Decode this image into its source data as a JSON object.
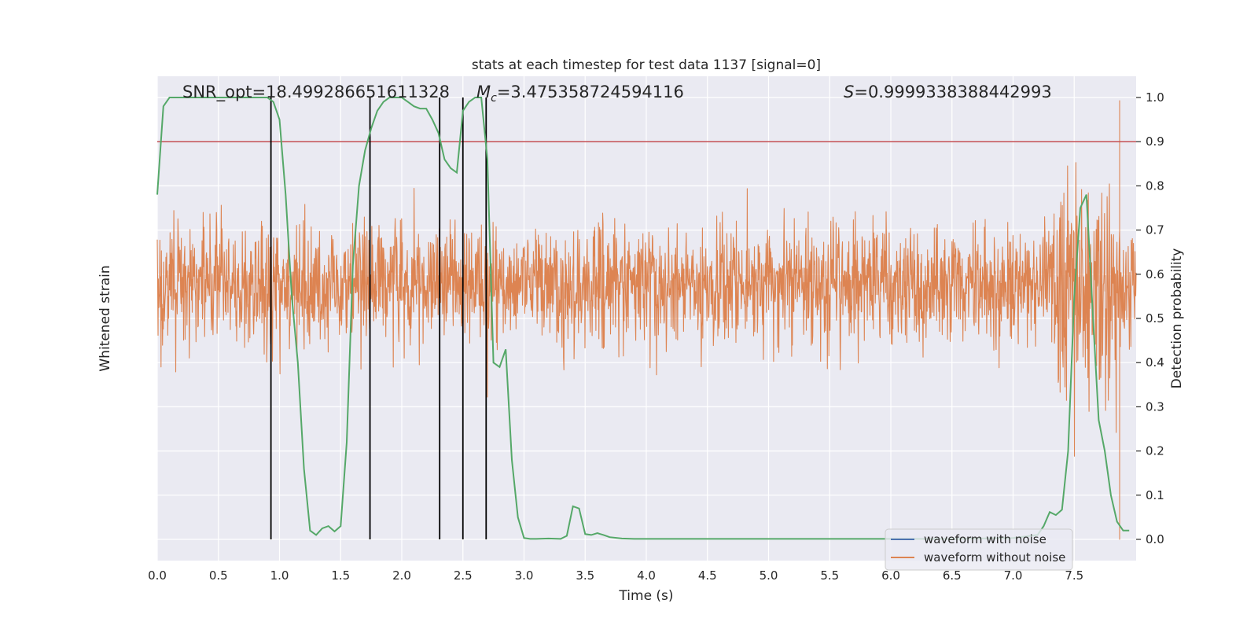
{
  "chart_data": {
    "type": "line",
    "title": "stats at each timestep for test data 1137 [signal=0]",
    "xlabel": "Time (s)",
    "ylabel_left": "Whitened strain",
    "ylabel_right": "Detection probability",
    "xlim": [
      0.0,
      8.0
    ],
    "ylim_right": [
      -0.05,
      1.05
    ],
    "x_ticks": [
      "0.0",
      "0.5",
      "1.0",
      "1.5",
      "2.0",
      "2.5",
      "3.0",
      "3.5",
      "4.0",
      "4.5",
      "5.0",
      "5.5",
      "6.0",
      "6.5",
      "7.0",
      "7.5"
    ],
    "y_right_ticks": [
      "0.0",
      "0.1",
      "0.2",
      "0.3",
      "0.4",
      "0.5",
      "0.6",
      "0.7",
      "0.8",
      "0.9",
      "1.0"
    ],
    "grid": true,
    "annotations": {
      "snr": "SNR_opt=18.499286651611328",
      "chirp_mass_symbol": "M",
      "chirp_mass_sub": "c",
      "chirp_mass_value": "=3.475358724594116",
      "score_symbol": "S",
      "score_value": "=0.9999338388442993"
    },
    "threshold": 0.9,
    "vertical_lines_x": [
      0.93,
      1.74,
      2.31,
      2.5,
      2.69
    ],
    "legend": {
      "position": "lower right",
      "entries": [
        {
          "label": "waveform with noise",
          "color": "#4c72b0"
        },
        {
          "label": "waveform without noise",
          "color": "#dd8452"
        }
      ]
    },
    "series": [
      {
        "name": "Detection probability",
        "color": "#55a868",
        "x": [
          0.0,
          0.05,
          0.1,
          0.15,
          0.2,
          0.25,
          0.3,
          0.4,
          0.5,
          0.6,
          0.7,
          0.8,
          0.9,
          0.95,
          1.0,
          1.05,
          1.1,
          1.15,
          1.2,
          1.25,
          1.3,
          1.35,
          1.4,
          1.45,
          1.5,
          1.55,
          1.6,
          1.65,
          1.7,
          1.75,
          1.8,
          1.85,
          1.9,
          1.95,
          2.0,
          2.05,
          2.1,
          2.15,
          2.2,
          2.25,
          2.3,
          2.35,
          2.4,
          2.45,
          2.5,
          2.55,
          2.6,
          2.65,
          2.7,
          2.75,
          2.8,
          2.85,
          2.9,
          2.95,
          3.0,
          3.05,
          3.1,
          3.2,
          3.3,
          3.35,
          3.4,
          3.45,
          3.5,
          3.55,
          3.6,
          3.65,
          3.7,
          3.8,
          3.9,
          4.0,
          4.5,
          5.0,
          5.5,
          6.0,
          6.5,
          7.0,
          7.2,
          7.25,
          7.3,
          7.35,
          7.4,
          7.45,
          7.5,
          7.55,
          7.6,
          7.65,
          7.7,
          7.75,
          7.8,
          7.85,
          7.9,
          7.95
        ],
        "values": [
          0.78,
          0.98,
          1.0,
          1.0,
          1.0,
          1.0,
          1.0,
          1.0,
          1.0,
          1.0,
          1.0,
          1.0,
          1.0,
          0.99,
          0.95,
          0.78,
          0.55,
          0.4,
          0.16,
          0.02,
          0.01,
          0.025,
          0.03,
          0.018,
          0.03,
          0.22,
          0.62,
          0.8,
          0.88,
          0.93,
          0.97,
          0.99,
          1.0,
          1.0,
          1.0,
          0.99,
          0.98,
          0.975,
          0.975,
          0.95,
          0.92,
          0.86,
          0.84,
          0.83,
          0.97,
          0.99,
          1.0,
          1.0,
          0.86,
          0.4,
          0.39,
          0.43,
          0.18,
          0.05,
          0.003,
          0.001,
          0.001,
          0.002,
          0.001,
          0.008,
          0.075,
          0.07,
          0.012,
          0.01,
          0.014,
          0.01,
          0.005,
          0.002,
          0.001,
          0.001,
          0.001,
          0.001,
          0.001,
          0.001,
          0.001,
          0.003,
          0.01,
          0.03,
          0.062,
          0.055,
          0.067,
          0.2,
          0.55,
          0.75,
          0.78,
          0.52,
          0.27,
          0.2,
          0.1,
          0.04,
          0.02,
          0.02
        ]
      }
    ]
  }
}
